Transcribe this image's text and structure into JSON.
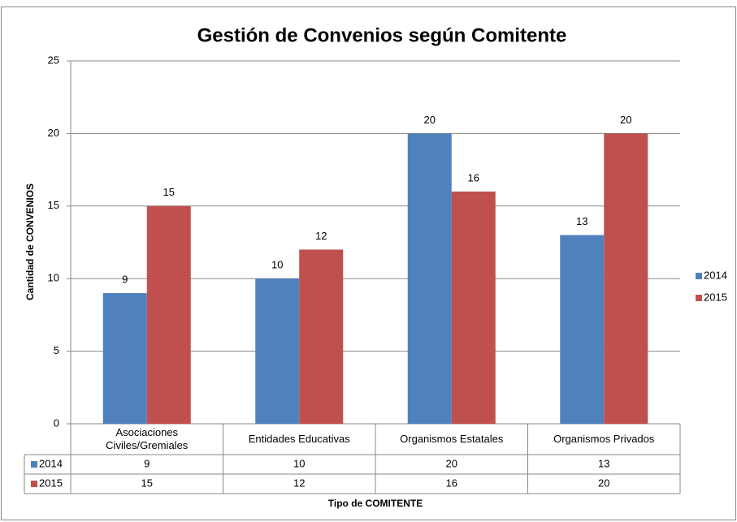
{
  "chart_data": {
    "type": "bar",
    "title": "Gestión de Convenios según Comitente",
    "y_label": "Cantidad de CONVENIOS",
    "x_label": "Tipo de COMITENTE",
    "categories": [
      "Asociaciones Civiles/Gremiales",
      "Entidades Educativas",
      "Organismos Estatales",
      "Organismos Privados"
    ],
    "series": [
      {
        "name": "2014",
        "color": "#4f81bd",
        "values": [
          9,
          10,
          20,
          13
        ]
      },
      {
        "name": "2015",
        "color": "#c0504d",
        "values": [
          15,
          12,
          16,
          20
        ]
      }
    ],
    "ylim": [
      0,
      25
    ],
    "yticks": [
      0,
      5,
      10,
      15,
      20,
      25
    ],
    "grid": true,
    "legend": "right"
  }
}
